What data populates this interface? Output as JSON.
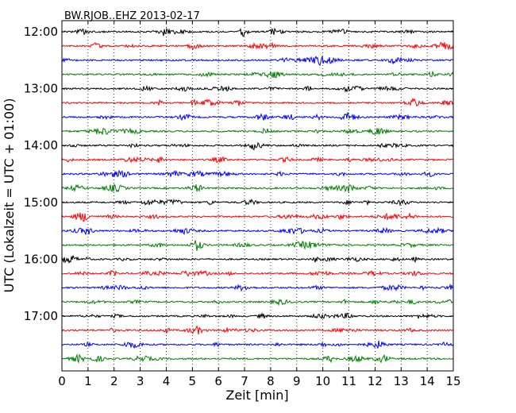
{
  "chart_data": {
    "type": "line",
    "title": "BW.RJOB..EHZ 2013-02-17",
    "xlabel": "Zeit  [min]",
    "ylabel": "UTC (Lokalzeit = UTC + 01:00)",
    "xlim": [
      0,
      15
    ],
    "x_ticks": [
      0,
      1,
      2,
      3,
      4,
      5,
      6,
      7,
      8,
      9,
      10,
      11,
      12,
      13,
      14,
      15
    ],
    "y_ticks": [
      "12:00",
      "13:00",
      "14:00",
      "15:00",
      "16:00",
      "17:00"
    ],
    "grid": "vertical dotted lines at each minute",
    "trace_interval_minutes": 15,
    "traces": [
      {
        "start": "12:00",
        "color": "#000000"
      },
      {
        "start": "12:15",
        "color": "#ff0000"
      },
      {
        "start": "12:30",
        "color": "#0000ff"
      },
      {
        "start": "12:45",
        "color": "#008000"
      },
      {
        "start": "13:00",
        "color": "#000000"
      },
      {
        "start": "13:15",
        "color": "#ff0000"
      },
      {
        "start": "13:30",
        "color": "#0000ff"
      },
      {
        "start": "13:45",
        "color": "#008000"
      },
      {
        "start": "14:00",
        "color": "#000000"
      },
      {
        "start": "14:15",
        "color": "#ff0000"
      },
      {
        "start": "14:30",
        "color": "#0000ff"
      },
      {
        "start": "14:45",
        "color": "#008000"
      },
      {
        "start": "15:00",
        "color": "#000000"
      },
      {
        "start": "15:15",
        "color": "#ff0000"
      },
      {
        "start": "15:30",
        "color": "#0000ff"
      },
      {
        "start": "15:45",
        "color": "#008000"
      },
      {
        "start": "16:00",
        "color": "#000000"
      },
      {
        "start": "16:15",
        "color": "#ff0000"
      },
      {
        "start": "16:30",
        "color": "#0000ff"
      },
      {
        "start": "16:45",
        "color": "#008000"
      },
      {
        "start": "17:00",
        "color": "#000000"
      },
      {
        "start": "17:15",
        "color": "#ff0000"
      },
      {
        "start": "17:30",
        "color": "#0000ff"
      },
      {
        "start": "17:45",
        "color": "#008000"
      }
    ]
  }
}
